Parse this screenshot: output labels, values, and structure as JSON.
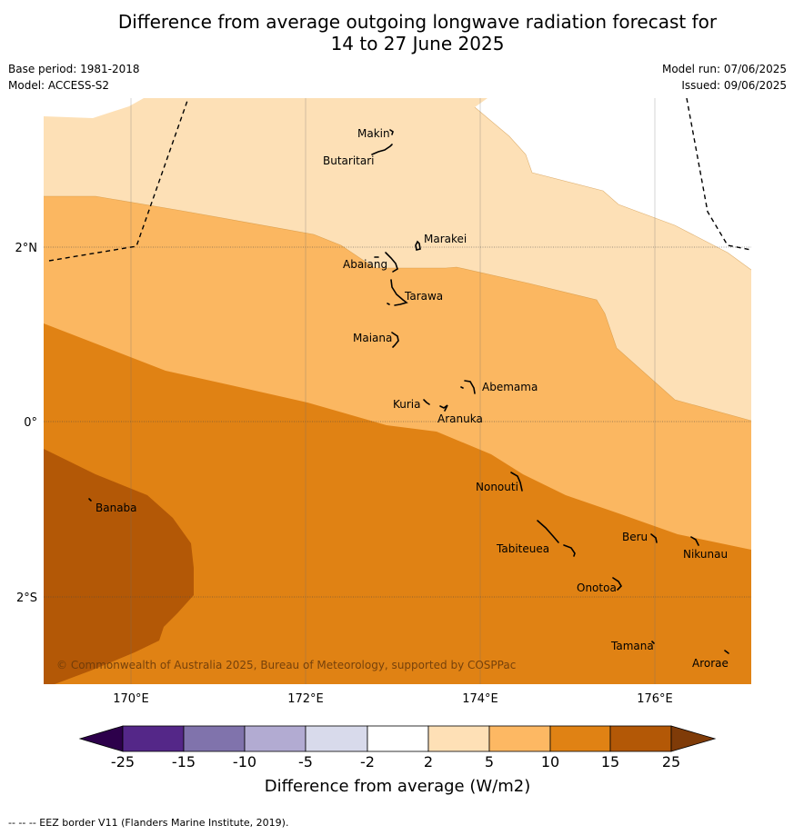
{
  "title": {
    "line1": "Difference from average outgoing longwave radiation forecast for",
    "line2": "14 to 27 June 2025"
  },
  "meta_left": {
    "base_period": "Base period: 1981-2018",
    "model": "Model: ACCESS-S2"
  },
  "meta_right": {
    "model_run": "Model run: 07/06/2025",
    "issued": "Issued: 09/06/2025"
  },
  "map": {
    "lon_labels": [
      "170°E",
      "172°E",
      "174°E",
      "176°E"
    ],
    "lat_labels": [
      "2°N",
      "0°",
      "2°S"
    ],
    "islands": [
      "Makin",
      "Butaritari",
      "Marakei",
      "Abaiang",
      "Tarawa",
      "Maiana",
      "Abemama",
      "Kuria",
      "Aranuka",
      "Nonouti",
      "Banaba",
      "Tabiteuea",
      "Beru",
      "Nikunau",
      "Onotoa",
      "Tamana",
      "Arorae"
    ],
    "copyright": "© Commonwealth of Australia 2025, Bureau of Meteorology, supported by COSPPac",
    "colors": {
      "band_2_5": "#fde0b6",
      "band_5_10": "#fbb761",
      "band_10_15": "#e08214",
      "band_15_25": "#b35806"
    }
  },
  "colorbar": {
    "ticks": [
      "-25",
      "-15",
      "-10",
      "-5",
      "-2",
      "2",
      "5",
      "10",
      "15",
      "25"
    ],
    "colors": [
      "#2d004b",
      "#542788",
      "#8073ac",
      "#b2abd2",
      "#d8daeb",
      "#ffffff",
      "#fee0b6",
      "#fdb863",
      "#e08214",
      "#b35806",
      "#7f3b08"
    ],
    "label": "Difference from average (W/m2)"
  },
  "footer": {
    "eez": "--  --  -- EEZ border V11 (Flanders Marine Institute, 2019)."
  }
}
